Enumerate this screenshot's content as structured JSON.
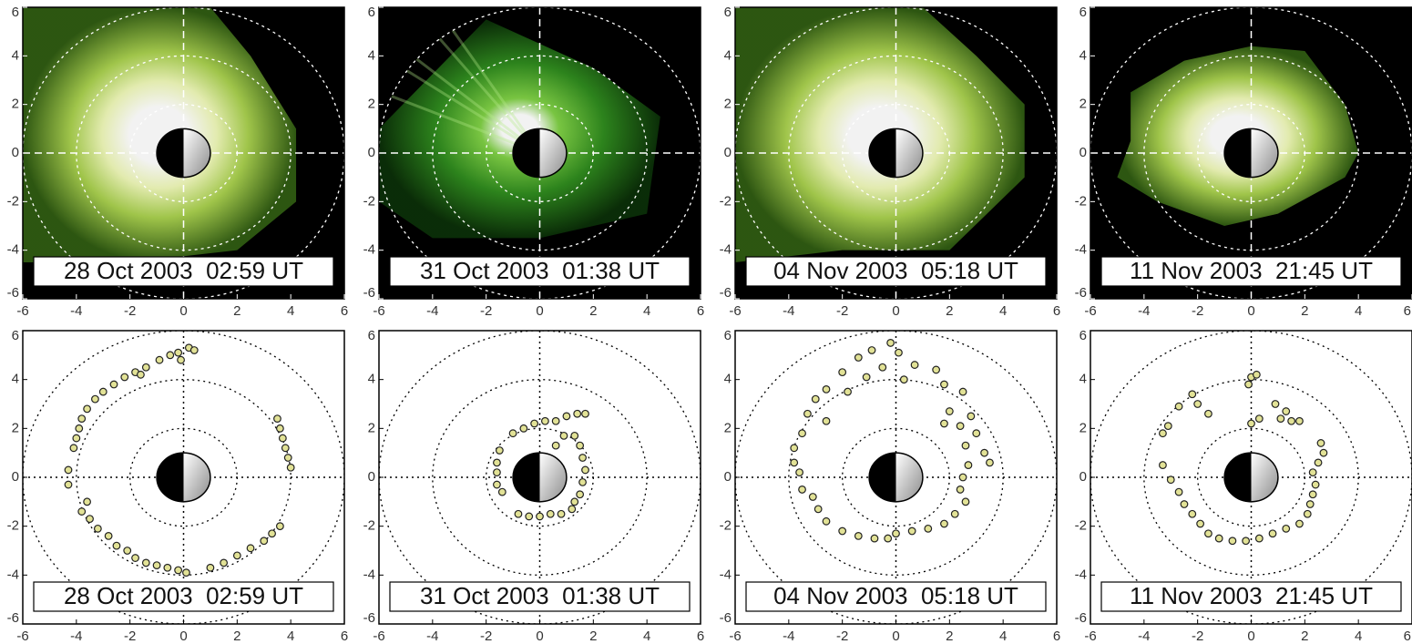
{
  "chart_data": [
    {
      "type": "image",
      "label": "28 Oct 2003  02:59 UT",
      "xlim": [
        -6,
        6
      ],
      "ylim": [
        -6,
        6
      ],
      "xticks": [
        -6,
        -4,
        -2,
        0,
        2,
        4,
        6
      ],
      "yticks": [
        -6,
        -4,
        -2,
        0,
        2,
        4,
        6
      ]
    },
    {
      "type": "image",
      "label": "31 Oct 2003  01:38 UT",
      "xlim": [
        -6,
        6
      ],
      "ylim": [
        -6,
        6
      ],
      "xticks": [
        -6,
        -4,
        -2,
        0,
        2,
        4,
        6
      ],
      "yticks": [
        -6,
        -4,
        -2,
        0,
        2,
        4,
        6
      ]
    },
    {
      "type": "image",
      "label": "04 Nov 2003  05:18 UT",
      "xlim": [
        -6,
        6
      ],
      "ylim": [
        -6,
        6
      ],
      "xticks": [
        -6,
        -4,
        -2,
        0,
        2,
        4,
        6
      ],
      "yticks": [
        -6,
        -4,
        -2,
        0,
        2,
        4,
        6
      ]
    },
    {
      "type": "image",
      "label": "11 Nov 2003  21:45 UT",
      "xlim": [
        -6,
        6
      ],
      "ylim": [
        -6,
        6
      ],
      "xticks": [
        -6,
        -4,
        -2,
        0,
        2,
        4,
        6
      ],
      "yticks": [
        -6,
        -4,
        -2,
        0,
        2,
        4,
        6
      ]
    },
    {
      "type": "scatter",
      "label": "28 Oct 2003  02:59 UT",
      "color": "#e2e296",
      "xlim": [
        -6,
        6
      ],
      "ylim": [
        -6,
        6
      ],
      "xticks": [
        -6,
        -4,
        -2,
        0,
        2,
        4,
        6
      ],
      "yticks": [
        -6,
        -4,
        -2,
        0,
        2,
        4,
        6
      ],
      "x": [
        -4.1,
        -4.0,
        -3.9,
        -3.8,
        -3.6,
        -3.3,
        -3.0,
        -2.6,
        -2.2,
        -1.8,
        -1.4,
        -1.6,
        -0.9,
        -0.5,
        -0.2,
        0.2,
        0.4,
        -0.1,
        3.5,
        3.6,
        3.7,
        3.8,
        3.9,
        4.0,
        -4.3,
        -4.3,
        -3.6,
        -3.8,
        -3.5,
        -3.2,
        -2.8,
        -2.5,
        -2.1,
        -1.8,
        -1.4,
        -1.0,
        -0.6,
        -0.2,
        0.1,
        1.0,
        1.5,
        2.0,
        2.5,
        3.0,
        3.3,
        3.6
      ],
      "y": [
        1.2,
        1.6,
        2.0,
        2.4,
        2.8,
        3.2,
        3.5,
        3.8,
        4.1,
        4.3,
        4.5,
        4.2,
        4.8,
        5.0,
        5.1,
        5.3,
        5.2,
        4.8,
        2.4,
        2.0,
        1.6,
        1.2,
        0.8,
        0.4,
        0.3,
        -0.3,
        -1.0,
        -1.4,
        -1.7,
        -2.1,
        -2.4,
        -2.8,
        -3.0,
        -3.3,
        -3.5,
        -3.6,
        -3.7,
        -3.8,
        -3.9,
        -3.7,
        -3.5,
        -3.2,
        -2.9,
        -2.6,
        -2.3,
        -2.0
      ]
    },
    {
      "type": "scatter",
      "label": "31 Oct 2003  01:38 UT",
      "color": "#e2e296",
      "xlim": [
        -6,
        6
      ],
      "ylim": [
        -6,
        6
      ],
      "xticks": [
        -6,
        -4,
        -2,
        0,
        2,
        4,
        6
      ],
      "yticks": [
        -6,
        -4,
        -2,
        0,
        2,
        4,
        6
      ],
      "x": [
        -1.0,
        -0.6,
        -0.2,
        0.2,
        0.6,
        1.0,
        1.4,
        1.7,
        -1.5,
        -1.6,
        -1.6,
        -1.6,
        -1.4,
        -0.8,
        -0.4,
        0.0,
        0.4,
        0.8,
        1.2,
        0.6,
        0.9,
        1.3,
        1.5,
        1.6,
        1.7,
        1.6,
        1.5,
        1.3
      ],
      "y": [
        1.8,
        2.0,
        2.2,
        2.3,
        2.3,
        2.5,
        2.6,
        2.6,
        1.1,
        0.6,
        0.2,
        -0.3,
        -0.6,
        -1.5,
        -1.6,
        -1.6,
        -1.5,
        -1.5,
        -1.3,
        1.3,
        1.7,
        1.7,
        1.3,
        0.8,
        0.3,
        -0.2,
        -0.7,
        -1.0
      ]
    },
    {
      "type": "scatter",
      "label": "04 Nov 2003  05:18 UT",
      "color": "#e2e296",
      "xlim": [
        -6,
        6
      ],
      "ylim": [
        -6,
        6
      ],
      "xticks": [
        -6,
        -4,
        -2,
        0,
        2,
        4,
        6
      ],
      "yticks": [
        -6,
        -4,
        -2,
        0,
        2,
        4,
        6
      ],
      "x": [
        -0.2,
        -0.9,
        0.1,
        -1.4,
        0.7,
        1.5,
        -0.5,
        -2.0,
        -1.1,
        0.3,
        1.8,
        -2.6,
        2.5,
        -3.0,
        -1.8,
        2.0,
        2.8,
        -3.3,
        -2.6,
        1.8,
        2.4,
        3.0,
        -3.5,
        -3.8,
        2.6,
        3.3,
        -3.8,
        2.7,
        3.5,
        -3.6,
        2.5,
        -3.5,
        2.4,
        -3.1,
        2.6,
        -2.9,
        2.2,
        -2.6,
        1.8,
        -2.0,
        1.2,
        -1.4,
        0.6,
        -0.8,
        0.0,
        -0.3
      ],
      "y": [
        5.5,
        5.2,
        5.1,
        4.9,
        4.6,
        4.4,
        4.5,
        4.3,
        4.1,
        4.0,
        3.8,
        3.6,
        3.5,
        3.2,
        3.5,
        2.7,
        2.5,
        2.6,
        2.3,
        2.2,
        2.1,
        1.8,
        1.8,
        1.2,
        1.3,
        1.0,
        0.6,
        0.5,
        0.6,
        0.2,
        0.0,
        -0.5,
        -0.5,
        -0.8,
        -1.0,
        -1.3,
        -1.5,
        -1.8,
        -1.9,
        -2.2,
        -2.1,
        -2.4,
        -2.2,
        -2.5,
        -2.3,
        -2.5
      ]
    },
    {
      "type": "scatter",
      "label": "11 Nov 2003  21:45 UT",
      "color": "#e2e296",
      "xlim": [
        -6,
        6
      ],
      "ylim": [
        -6,
        6
      ],
      "xticks": [
        -6,
        -4,
        -2,
        0,
        2,
        4,
        6
      ],
      "yticks": [
        -6,
        -4,
        -2,
        0,
        2,
        4,
        6
      ],
      "x": [
        0.0,
        0.2,
        -0.1,
        -2.2,
        -2.0,
        -2.7,
        -1.6,
        -3.1,
        -3.3,
        0.9,
        1.3,
        1.1,
        1.5,
        1.8,
        0.0,
        0.3,
        2.6,
        2.7,
        2.5,
        2.3,
        2.4,
        2.3,
        2.2,
        2.1,
        1.8,
        1.3,
        0.8,
        0.3,
        -0.2,
        -0.7,
        -1.2,
        -1.6,
        -1.9,
        -2.2,
        -2.5,
        -2.7,
        -3.0,
        -3.3
      ],
      "y": [
        4.1,
        4.2,
        3.8,
        3.4,
        3.0,
        2.9,
        2.6,
        2.1,
        1.8,
        3.0,
        2.7,
        2.4,
        2.3,
        2.3,
        2.2,
        2.4,
        1.4,
        1.0,
        0.6,
        0.2,
        -0.3,
        -0.7,
        -1.1,
        -1.5,
        -1.9,
        -2.1,
        -2.3,
        -2.5,
        -2.6,
        -2.6,
        -2.5,
        -2.3,
        -1.9,
        -1.5,
        -1.1,
        -0.6,
        -0.1,
        0.5
      ]
    }
  ]
}
